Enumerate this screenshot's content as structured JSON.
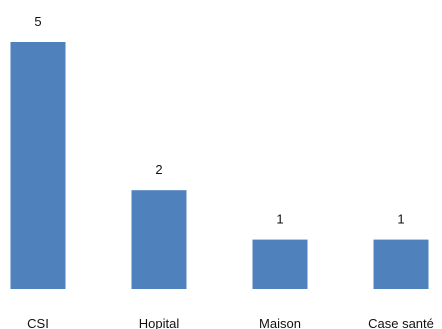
{
  "chart_data": {
    "type": "bar",
    "categories": [
      "CSI",
      "Hopital",
      "Maison",
      "Case santé"
    ],
    "values": [
      5,
      2,
      1,
      1
    ],
    "data_labels": [
      "5",
      "2",
      "1",
      "1"
    ],
    "title": "",
    "xlabel": "",
    "ylabel": "",
    "ylim": [
      0,
      5
    ],
    "grid": false,
    "legend": "none",
    "bar_color": "#4f81bd"
  }
}
